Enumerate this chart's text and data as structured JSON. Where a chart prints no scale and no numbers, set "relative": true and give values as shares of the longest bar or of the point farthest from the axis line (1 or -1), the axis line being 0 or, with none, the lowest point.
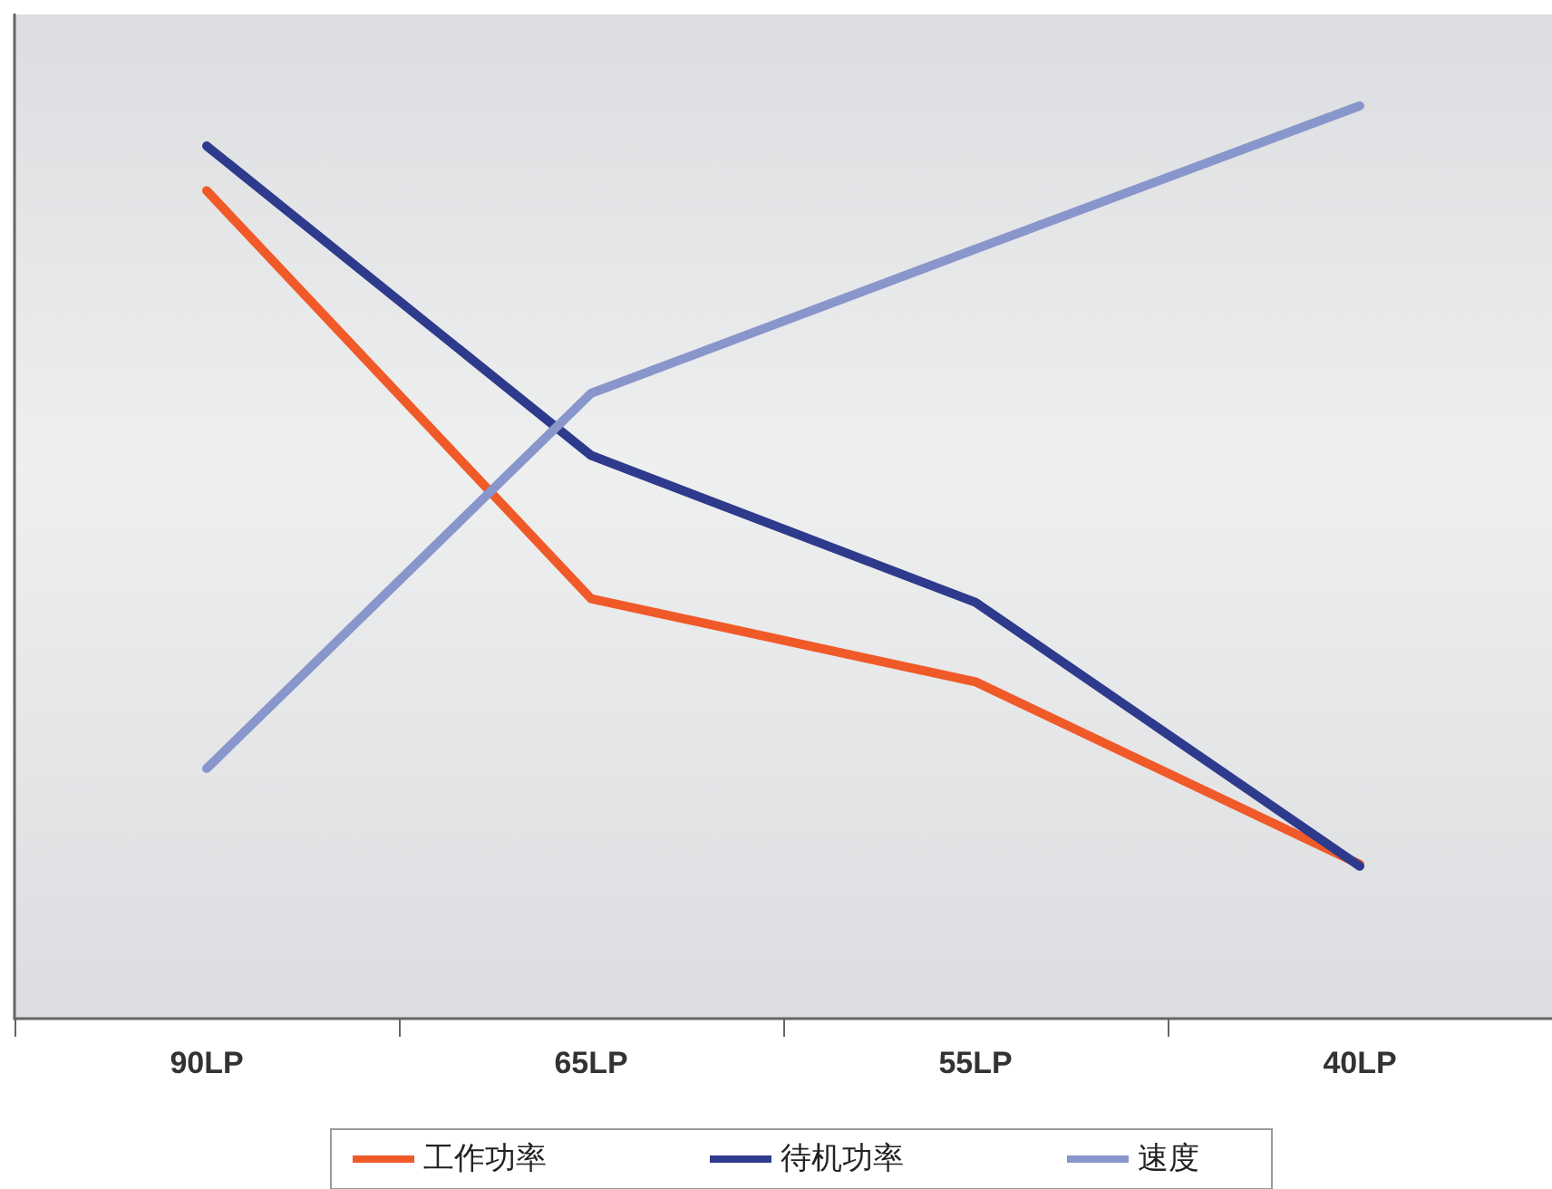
{
  "chart_data": {
    "type": "line",
    "relative": true,
    "categories": [
      "90LP",
      "65LP",
      "55LP",
      "40LP"
    ],
    "legend": "bottom",
    "grid": false,
    "marker": "none",
    "line_style": "solid",
    "series": [
      {
        "name": "工作功率",
        "color": "#f05a28",
        "values": [
          0.907,
          0.46,
          0.369,
          0.169
        ]
      },
      {
        "name": "待机功率",
        "color": "#2e3a8c",
        "values": [
          0.956,
          0.617,
          0.456,
          0.167
        ]
      },
      {
        "name": "速度",
        "color": "#8896cc",
        "values": [
          0.274,
          0.685,
          0.843,
          1
        ]
      }
    ]
  }
}
